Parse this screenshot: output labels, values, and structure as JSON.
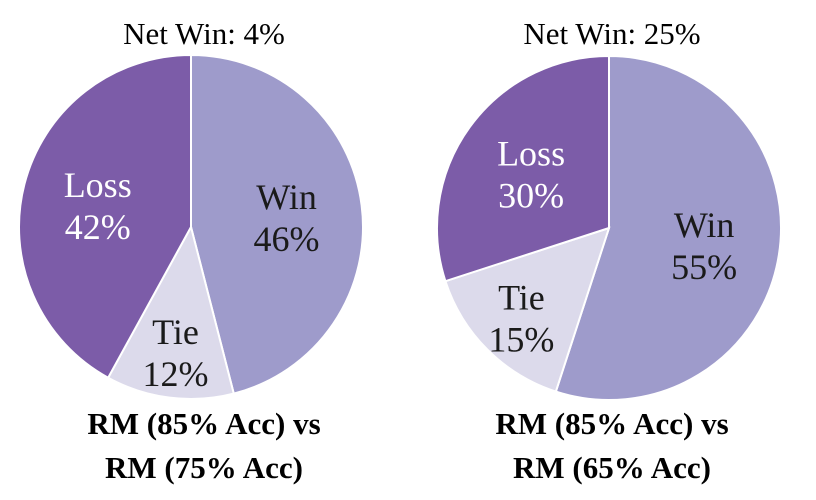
{
  "colors": {
    "win": "#9e9bcb",
    "loss": "#7c5ca8",
    "tie": "#dcdaeb",
    "border": "#ffffff",
    "label_dark": "#1a1a1a",
    "label_light": "#ffffff"
  },
  "chart_data": [
    {
      "type": "pie",
      "title": "Net Win: 4%",
      "caption_line1": "RM (85% Acc) vs",
      "caption_line2": "RM (75% Acc)",
      "slices": [
        {
          "name": "Win",
          "value": 46,
          "label": "46%"
        },
        {
          "name": "Tie",
          "value": 12,
          "label": "12%"
        },
        {
          "name": "Loss",
          "value": 42,
          "label": "42%"
        }
      ]
    },
    {
      "type": "pie",
      "title": "Net Win: 25%",
      "caption_line1": "RM (85% Acc) vs",
      "caption_line2": "RM (65% Acc)",
      "slices": [
        {
          "name": "Win",
          "value": 55,
          "label": "55%"
        },
        {
          "name": "Tie",
          "value": 15,
          "label": "15%"
        },
        {
          "name": "Loss",
          "value": 30,
          "label": "30%"
        }
      ]
    }
  ]
}
